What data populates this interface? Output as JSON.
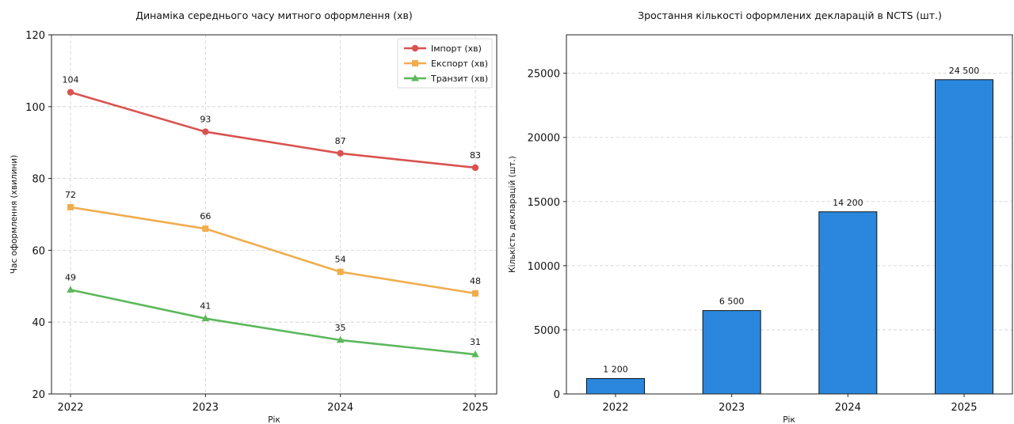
{
  "chart_data": [
    {
      "type": "line",
      "title": "Динаміка середнього часу митного оформлення (хв)",
      "xlabel": "Рік",
      "ylabel": "Час оформлення (хвилини)",
      "categories": [
        "2022",
        "2023",
        "2024",
        "2025"
      ],
      "ylim": [
        20,
        120
      ],
      "yticks": [
        20,
        40,
        60,
        80,
        100,
        120
      ],
      "grid": true,
      "legend_position": "top-right",
      "series": [
        {
          "name": "Імпорт (хв)",
          "values": [
            104,
            93,
            87,
            83
          ],
          "labels": [
            "104",
            "93",
            "87",
            "83"
          ],
          "color": "#d9534f",
          "marker": "circle"
        },
        {
          "name": "Експорт (хв)",
          "values": [
            72,
            66,
            54,
            48
          ],
          "labels": [
            "72",
            "66",
            "54",
            "48"
          ],
          "color": "#f0ad4e",
          "marker": "square"
        },
        {
          "name": "Транзит (хв)",
          "values": [
            49,
            41,
            35,
            31
          ],
          "labels": [
            "49",
            "41",
            "35",
            "31"
          ],
          "color": "#5cb85c",
          "marker": "triangle"
        }
      ]
    },
    {
      "type": "bar",
      "title": "Зростання кількості оформлених декларацій в NCTS (шт.)",
      "xlabel": "Рік",
      "ylabel": "Кількість декларацій (шт.)",
      "categories": [
        "2022",
        "2023",
        "2024",
        "2025"
      ],
      "values": [
        1200,
        6500,
        14200,
        24500
      ],
      "value_labels": [
        "1 200",
        "6 500",
        "14 200",
        "24 500"
      ],
      "ylim": [
        0,
        28000
      ],
      "yticks": [
        0,
        5000,
        10000,
        15000,
        20000,
        25000
      ],
      "grid": true,
      "bar_color": "#2a87dd",
      "edge_color": "#111111"
    }
  ]
}
